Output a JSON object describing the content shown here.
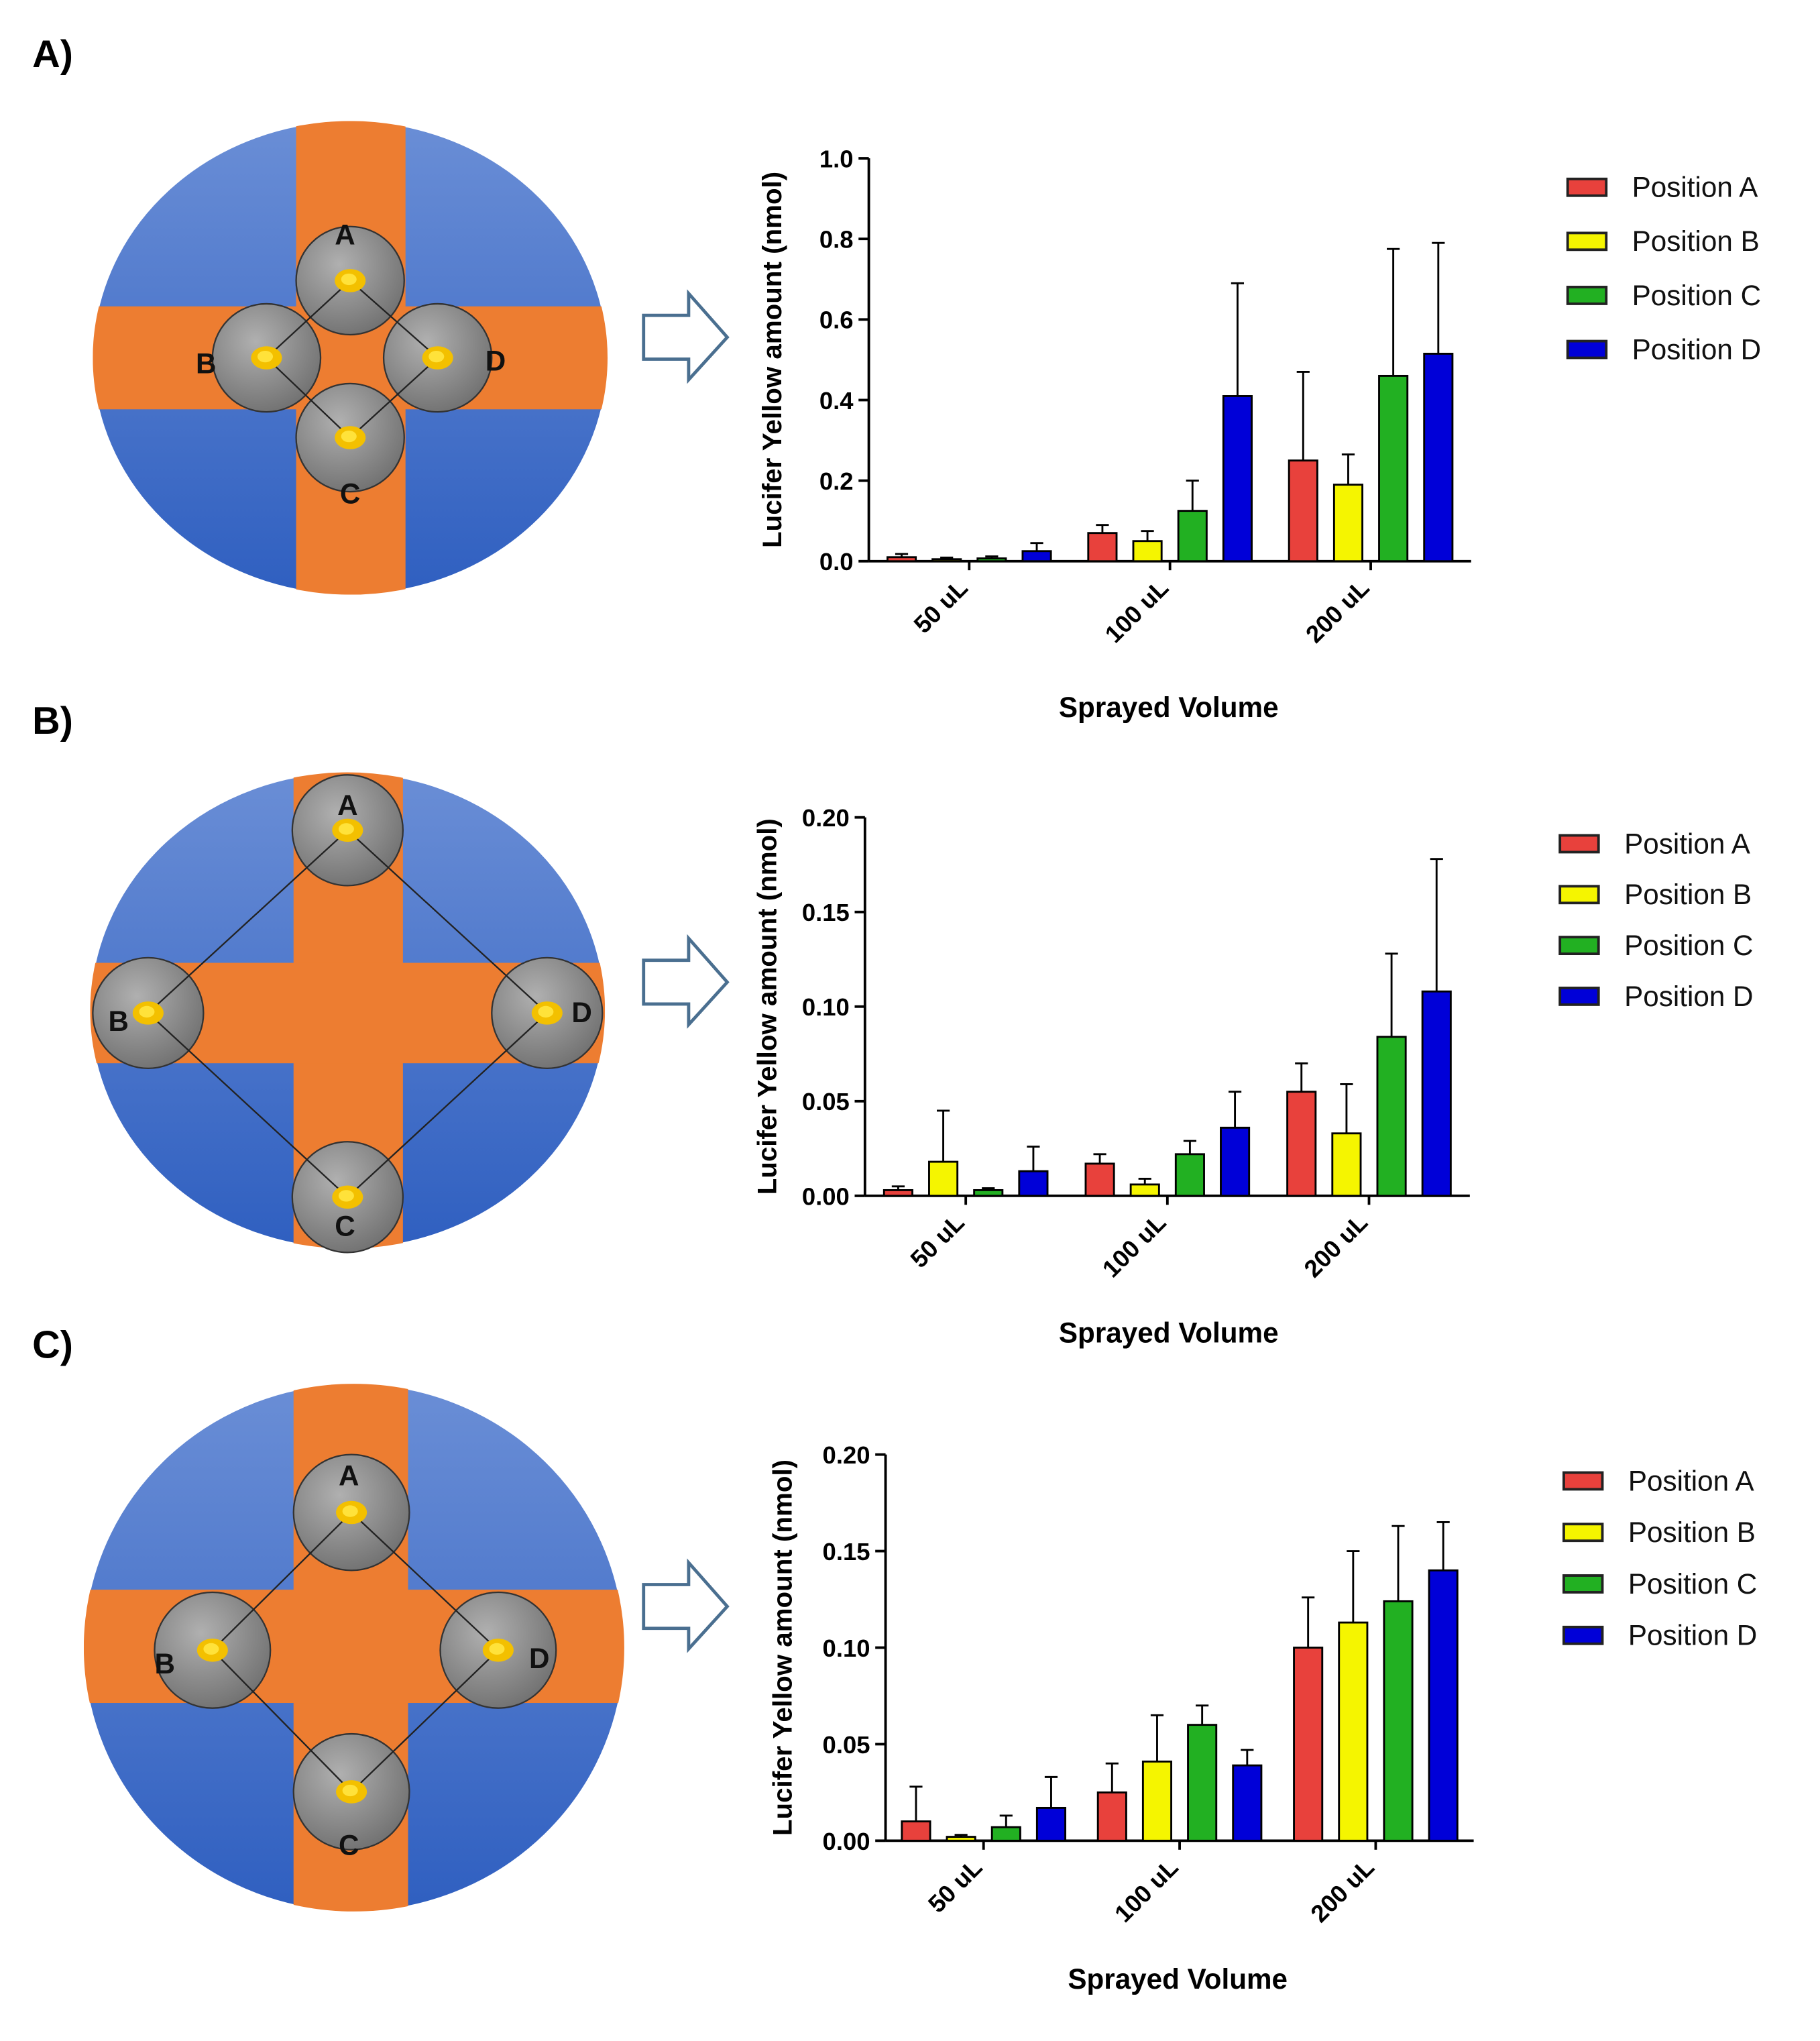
{
  "chart_data": [
    {
      "type": "bar",
      "panel_label": "A)",
      "diagram_labels": [
        "A",
        "B",
        "C",
        "D"
      ],
      "categories": [
        "50 uL",
        "100 uL",
        "200 uL"
      ],
      "x_label": "Sprayed Volume",
      "y_label": "Lucifer Yellow amount (nmol)",
      "ylim": [
        0,
        1
      ],
      "yticks": [
        {
          "value": 0,
          "label": "0.0"
        },
        0.2,
        0.4,
        0.6,
        0.8,
        {
          "value": 1,
          "label": "1.0"
        }
      ],
      "legend": "right",
      "series": [
        {
          "name": "Position A",
          "color": "#e8413c",
          "values": [
            0.01,
            0.07,
            0.25
          ],
          "errors": [
            0.008,
            0.02,
            0.22
          ]
        },
        {
          "name": "Position B",
          "color": "#f5f500",
          "values": [
            0.005,
            0.05,
            0.19
          ],
          "errors": [
            0.004,
            0.025,
            0.075
          ]
        },
        {
          "name": "Position C",
          "color": "#22b022",
          "values": [
            0.007,
            0.125,
            0.46
          ],
          "errors": [
            0.005,
            0.075,
            0.315
          ]
        },
        {
          "name": "Position D",
          "color": "#0000d8",
          "values": [
            0.025,
            0.41,
            0.515
          ],
          "errors": [
            0.02,
            0.28,
            0.275
          ]
        }
      ]
    },
    {
      "type": "bar",
      "panel_label": "B)",
      "diagram_labels": [
        "A",
        "B",
        "C",
        "D"
      ],
      "categories": [
        "50 uL",
        "100 uL",
        "200 uL"
      ],
      "x_label": "Sprayed Volume",
      "y_label": "Lucifer Yellow amount (nmol)",
      "ylim": [
        0,
        0.2
      ],
      "yticks": [
        {
          "value": 0,
          "label": "0.00"
        },
        0.05,
        {
          "value": 0.1,
          "label": "0.10"
        },
        0.15,
        {
          "value": 0.2,
          "label": "0.20"
        }
      ],
      "legend": "right",
      "series": [
        {
          "name": "Position A",
          "color": "#e8413c",
          "values": [
            0.003,
            0.017,
            0.055
          ],
          "errors": [
            0.002,
            0.005,
            0.015
          ]
        },
        {
          "name": "Position B",
          "color": "#f5f500",
          "values": [
            0.018,
            0.006,
            0.033
          ],
          "errors": [
            0.027,
            0.003,
            0.026
          ]
        },
        {
          "name": "Position C",
          "color": "#22b022",
          "values": [
            0.003,
            0.022,
            0.084
          ],
          "errors": [
            0.001,
            0.007,
            0.044
          ]
        },
        {
          "name": "Position D",
          "color": "#0000d8",
          "values": [
            0.013,
            0.036,
            0.108
          ],
          "errors": [
            0.013,
            0.019,
            0.07
          ]
        }
      ]
    },
    {
      "type": "bar",
      "panel_label": "C)",
      "diagram_labels": [
        "A",
        "B",
        "C",
        "D"
      ],
      "categories": [
        "50 uL",
        "100 uL",
        "200 uL"
      ],
      "x_label": "Sprayed Volume",
      "y_label": "Lucifer Yellow amount (nmol)",
      "ylim": [
        0,
        0.2
      ],
      "yticks": [
        {
          "value": 0,
          "label": "0.00"
        },
        0.05,
        {
          "value": 0.1,
          "label": "0.10"
        },
        0.15,
        {
          "value": 0.2,
          "label": "0.20"
        }
      ],
      "legend": "right",
      "series": [
        {
          "name": "Position A",
          "color": "#e8413c",
          "values": [
            0.01,
            0.025,
            0.1
          ],
          "errors": [
            0.018,
            0.015,
            0.026
          ]
        },
        {
          "name": "Position B",
          "color": "#f5f500",
          "values": [
            0.002,
            0.041,
            0.113
          ],
          "errors": [
            0.001,
            0.024,
            0.037
          ]
        },
        {
          "name": "Position C",
          "color": "#22b022",
          "values": [
            0.007,
            0.06,
            0.124
          ],
          "errors": [
            0.006,
            0.01,
            0.039
          ]
        },
        {
          "name": "Position D",
          "color": "#0000d8",
          "values": [
            0.017,
            0.039,
            0.14
          ],
          "errors": [
            0.016,
            0.008,
            0.025
          ]
        }
      ]
    }
  ]
}
